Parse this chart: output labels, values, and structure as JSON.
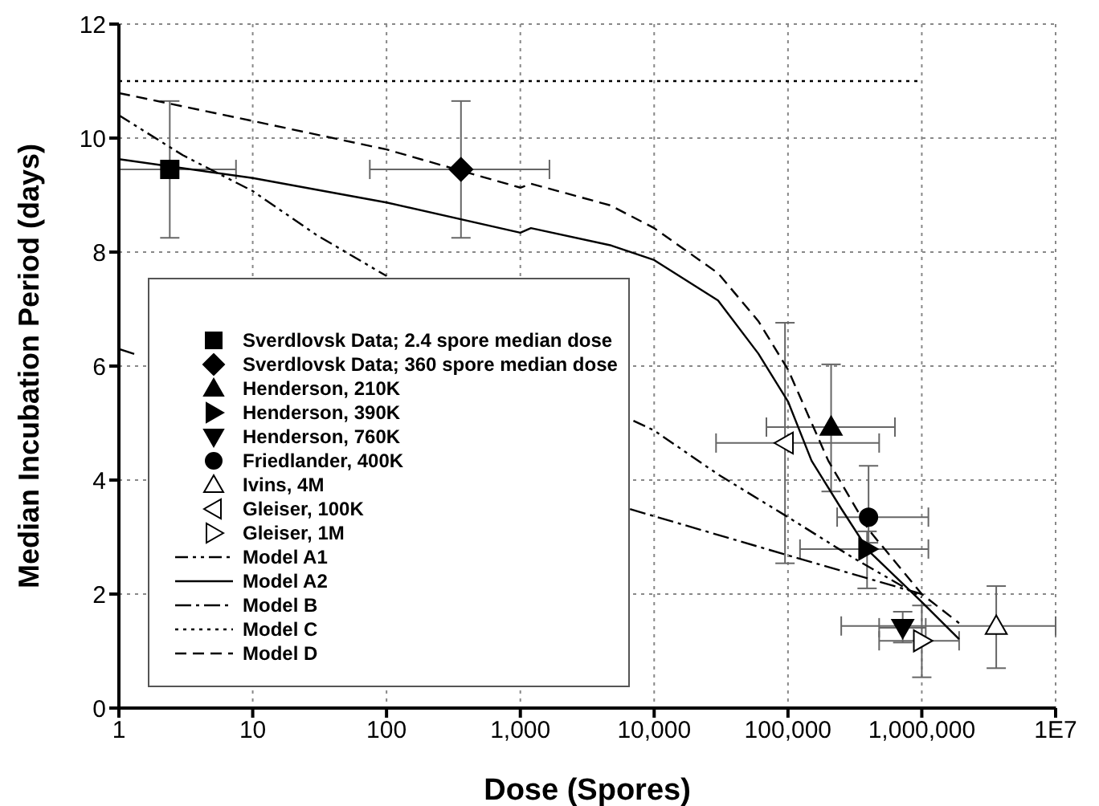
{
  "chart_data": {
    "type": "scatter",
    "xlabel": "Dose (Spores)",
    "ylabel": "Median Incubation Period (days)",
    "log": "x",
    "xlim": [
      1,
      10000000
    ],
    "xticks": [
      1,
      10,
      100,
      {
        "value": 1000,
        "label": "1,000"
      },
      {
        "value": 10000,
        "label": "10,000"
      },
      {
        "value": 100000,
        "label": "100,000"
      },
      {
        "value": 1000000,
        "label": "1,000,000"
      },
      {
        "value": 10000000,
        "label": "1E7"
      }
    ],
    "ylim": [
      0,
      12
    ],
    "yticks": [
      0,
      2,
      4,
      6,
      8,
      10,
      12
    ],
    "grid": true,
    "legend": "left",
    "series": [
      {
        "name": "Sverdlovsk Data; 2.4 spore median dose",
        "marker": "square",
        "color": "#000000",
        "x": [
          2.4
        ],
        "values": [
          9.45
        ],
        "errors": [
          [
            8.25,
            10.65
          ]
        ],
        "xerrors": [
          [
            1,
            7.5
          ]
        ]
      },
      {
        "name": "Sverdlovsk Data; 360 spore median dose",
        "marker": "diamond",
        "color": "#000000",
        "x": [
          360
        ],
        "values": [
          9.45
        ],
        "errors": [
          [
            8.25,
            10.65
          ]
        ],
        "xerrors": [
          [
            75,
            1650
          ]
        ]
      },
      {
        "name": "Henderson, 210K",
        "marker": "triangle",
        "color": "#000000",
        "x": [
          210000
        ],
        "values": [
          4.93
        ],
        "errors": [
          [
            3.8,
            6.03
          ]
        ],
        "xerrors": [
          [
            69000,
            630000
          ]
        ]
      },
      {
        "name": "Henderson, 390K",
        "marker": "triangle-right",
        "color": "#000000",
        "x": [
          390000
        ],
        "values": [
          2.79
        ],
        "errors": [
          [
            2.1,
            3.1
          ]
        ],
        "xerrors": [
          [
            123000,
            1120000
          ]
        ]
      },
      {
        "name": "Henderson, 760K",
        "marker": "triangle-down",
        "color": "#000000",
        "x": [
          720000
        ],
        "values": [
          1.41
        ],
        "errors": [
          [
            1.15,
            1.69
          ]
        ],
        "xerrors": [
          [
            480000,
            1070000
          ]
        ]
      },
      {
        "name": "Friedlander, 400K",
        "marker": "circle",
        "color": "#000000",
        "x": [
          400000
        ],
        "values": [
          3.35
        ],
        "errors": [
          [
            2.9,
            4.25
          ]
        ],
        "xerrors": [
          [
            233000,
            1120000
          ]
        ]
      },
      {
        "name": "Ivins, 4M",
        "marker": "triangle",
        "color": "#ffffff",
        "x": [
          3600000
        ],
        "values": [
          1.44
        ],
        "errors": [
          [
            0.7,
            2.14
          ]
        ],
        "xerrors": [
          [
            250000,
            10000000
          ]
        ]
      },
      {
        "name": "Gleiser, 100K",
        "marker": "triangle-left",
        "color": "#ffffff",
        "x": [
          95000
        ],
        "values": [
          4.65
        ],
        "errors": [
          [
            2.54,
            6.76
          ]
        ],
        "xerrors": [
          [
            29000,
            480000
          ]
        ]
      },
      {
        "name": "Gleiser, 1M",
        "marker": "triangle-right",
        "color": "#ffffff",
        "x": [
          1000000
        ],
        "values": [
          1.18
        ],
        "errors": [
          [
            0.54,
            1.8
          ]
        ],
        "xerrors": [
          [
            480000,
            1900000
          ]
        ]
      },
      {
        "name": "Model A1",
        "type": "line",
        "line_style": "dashdotdot",
        "color": "#000000",
        "x": [
          1,
          3,
          10,
          30,
          100,
          1000,
          7000,
          10000,
          30000,
          100000,
          300000,
          1000000
        ],
        "values": [
          10.4,
          9.7,
          9.07,
          8.3,
          7.58,
          null,
          5.04,
          4.87,
          4.1,
          3.35,
          2.65,
          1.94
        ]
      },
      {
        "name": "Model A2",
        "type": "line",
        "line_style": "solid",
        "color": "#000000",
        "x": [
          1,
          10,
          100,
          1000,
          1200,
          4700,
          10000,
          30000,
          60000,
          100000,
          150000,
          250000,
          400000,
          1000000,
          1900000
        ],
        "values": [
          9.63,
          9.3,
          8.87,
          8.34,
          8.42,
          8.12,
          7.86,
          7.15,
          6.22,
          5.38,
          4.34,
          3.5,
          2.76,
          1.86,
          1.21
        ]
      },
      {
        "name": "Model B",
        "type": "line",
        "line_style": "dashdot",
        "color": "#000000",
        "x": [
          1,
          1.4,
          1000,
          6600,
          100000,
          1000000
        ],
        "values": [
          6.3,
          6.19,
          null,
          3.49,
          2.68,
          2.0
        ]
      },
      {
        "name": "Model C",
        "type": "line",
        "line_style": "dotted",
        "color": "#000000",
        "x": [
          1,
          1000000
        ],
        "values": [
          11,
          11
        ]
      },
      {
        "name": "Model D",
        "type": "line",
        "line_style": "dashed",
        "color": "#000000",
        "x": [
          1,
          10,
          100,
          1000,
          1200,
          4700,
          10000,
          30000,
          60000,
          100000,
          200000,
          400000,
          1000000,
          1900000
        ],
        "values": [
          10.79,
          10.3,
          9.8,
          9.13,
          9.2,
          8.82,
          8.42,
          7.63,
          6.79,
          5.94,
          4.34,
          3.13,
          2.0,
          1.49
        ]
      }
    ]
  }
}
